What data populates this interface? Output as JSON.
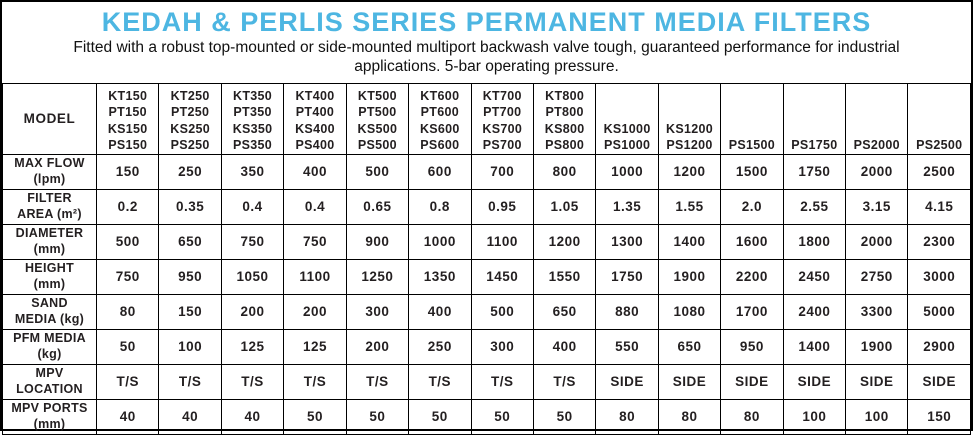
{
  "header": {
    "title": "KEDAH & PERLIS SERIES PERMANENT MEDIA FILTERS",
    "subtitle": "Fitted with a robust top-mounted or side-mounted multiport backwash valve tough, guaranteed performance for industrial applications. 5-bar operating pressure."
  },
  "colors": {
    "title_blue": "#4DB6E2",
    "label_blue": "#75C6E9",
    "text_ink": "#231F20",
    "border": "#000000"
  },
  "table": {
    "corner_label": "MODEL",
    "columns": [
      {
        "models": [
          "KT150",
          "PT150",
          "KS150",
          "PS150"
        ]
      },
      {
        "models": [
          "KT250",
          "PT250",
          "KS250",
          "PS250"
        ]
      },
      {
        "models": [
          "KT350",
          "PT350",
          "KS350",
          "PS350"
        ]
      },
      {
        "models": [
          "KT400",
          "PT400",
          "KS400",
          "PS400"
        ]
      },
      {
        "models": [
          "KT500",
          "PT500",
          "KS500",
          "PS500"
        ]
      },
      {
        "models": [
          "KT600",
          "PT600",
          "KS600",
          "PS600"
        ]
      },
      {
        "models": [
          "KT700",
          "PT700",
          "KS700",
          "PS700"
        ]
      },
      {
        "models": [
          "KT800",
          "PT800",
          "KS800",
          "PS800"
        ]
      },
      {
        "models": [
          "KS1000",
          "PS1000"
        ]
      },
      {
        "models": [
          "KS1200",
          "PS1200"
        ]
      },
      {
        "models": [
          "PS1500"
        ]
      },
      {
        "models": [
          "PS1750"
        ]
      },
      {
        "models": [
          "PS2000"
        ]
      },
      {
        "models": [
          "PS2500"
        ]
      }
    ],
    "rows": [
      {
        "label": [
          "MAX FLOW",
          "(lpm)"
        ],
        "values": [
          "150",
          "250",
          "350",
          "400",
          "500",
          "600",
          "700",
          "800",
          "1000",
          "1200",
          "1500",
          "1750",
          "2000",
          "2500"
        ]
      },
      {
        "label": [
          "FILTER",
          "AREA (m²)"
        ],
        "values": [
          "0.2",
          "0.35",
          "0.4",
          "0.4",
          "0.65",
          "0.8",
          "0.95",
          "1.05",
          "1.35",
          "1.55",
          "2.0",
          "2.55",
          "3.15",
          "4.15"
        ]
      },
      {
        "label": [
          "DIAMETER",
          "(mm)"
        ],
        "values": [
          "500",
          "650",
          "750",
          "750",
          "900",
          "1000",
          "1100",
          "1200",
          "1300",
          "1400",
          "1600",
          "1800",
          "2000",
          "2300"
        ]
      },
      {
        "label": [
          "HEIGHT",
          "(mm)"
        ],
        "values": [
          "750",
          "950",
          "1050",
          "1100",
          "1250",
          "1350",
          "1450",
          "1550",
          "1750",
          "1900",
          "2200",
          "2450",
          "2750",
          "3000"
        ]
      },
      {
        "label": [
          "SAND",
          "MEDIA (kg)"
        ],
        "values": [
          "80",
          "150",
          "200",
          "200",
          "300",
          "400",
          "500",
          "650",
          "880",
          "1080",
          "1700",
          "2400",
          "3300",
          "5000"
        ]
      },
      {
        "label": [
          "PFM MEDIA",
          "(kg)"
        ],
        "values": [
          "50",
          "100",
          "125",
          "125",
          "200",
          "250",
          "300",
          "400",
          "550",
          "650",
          "950",
          "1400",
          "1900",
          "2900"
        ]
      },
      {
        "label": [
          "MPV",
          "LOCATION"
        ],
        "values": [
          "T/S",
          "T/S",
          "T/S",
          "T/S",
          "T/S",
          "T/S",
          "T/S",
          "T/S",
          "SIDE",
          "SIDE",
          "SIDE",
          "SIDE",
          "SIDE",
          "SIDE"
        ]
      },
      {
        "label": [
          "MPV PORTS",
          "(mm)"
        ],
        "values": [
          "40",
          "40",
          "40",
          "50",
          "50",
          "50",
          "50",
          "50",
          "80",
          "80",
          "80",
          "100",
          "100",
          "150"
        ]
      }
    ]
  }
}
